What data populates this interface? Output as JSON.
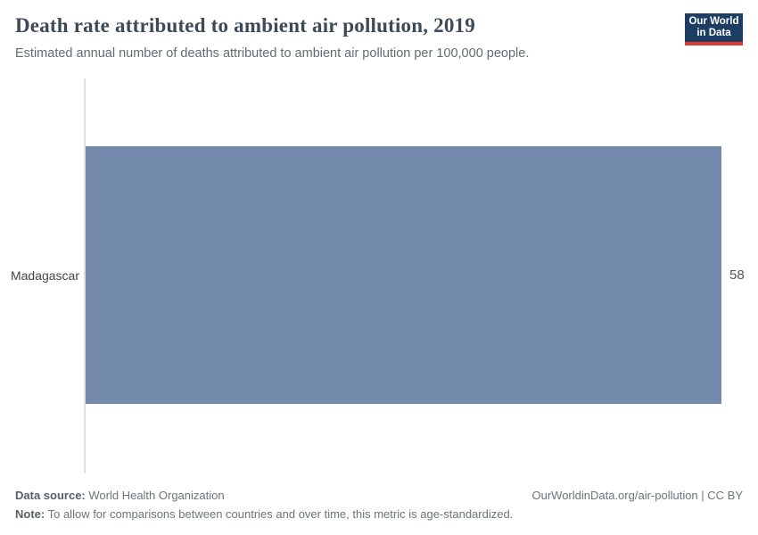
{
  "header": {
    "title": "Death rate attributed to ambient air pollution, 2019",
    "subtitle": "Estimated annual number of deaths attributed to ambient air pollution per 100,000 people.",
    "logo": {
      "line1": "Our World",
      "line2": "in Data",
      "bg_color": "#1d3d63",
      "accent_color": "#d93a34"
    }
  },
  "chart_data": {
    "type": "bar",
    "orientation": "horizontal",
    "title": "Death rate attributed to ambient air pollution, 2019",
    "categories": [
      "Madagascar"
    ],
    "values": [
      58
    ],
    "value_labels": [
      "58"
    ],
    "xlabel": "",
    "ylabel": "",
    "xlim": [
      0,
      58
    ],
    "grid": false,
    "legend": false,
    "bar_color": "#7289ab"
  },
  "footer": {
    "data_source_label": "Data source:",
    "data_source_value": "World Health Organization",
    "note_label": "Note:",
    "note_value": "To allow for comparisons between countries and over time, this metric is age-standardized.",
    "attribution": "OurWorldinData.org/air-pollution | CC BY"
  }
}
